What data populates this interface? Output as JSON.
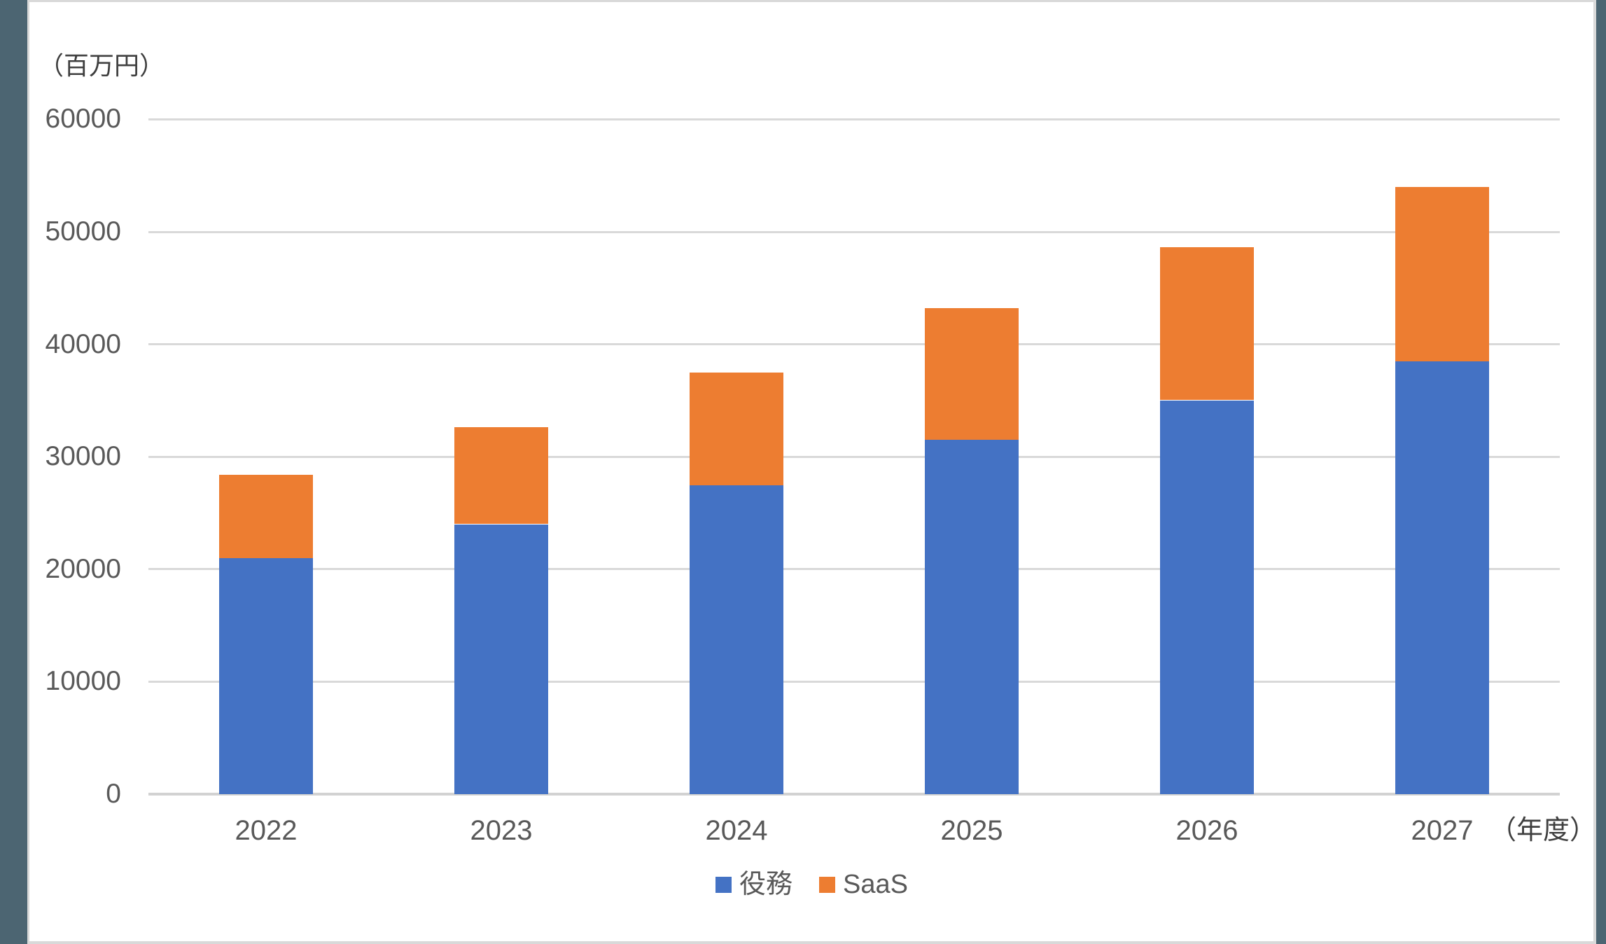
{
  "frame": {
    "side_strip_color": "#4C6572",
    "canvas_border_color": "#D9D9D9",
    "canvas_background": "#ffffff"
  },
  "chart_data": {
    "type": "bar",
    "stacked": true,
    "title": "",
    "unit_label": "（百万円）",
    "x_axis_suffix": "（年度）",
    "categories": [
      "2022",
      "2023",
      "2024",
      "2025",
      "2026",
      "2027"
    ],
    "series": [
      {
        "key": "services",
        "name": "役務",
        "color": "#4472C4",
        "values": [
          21000,
          24000,
          27500,
          31500,
          35000,
          38500
        ]
      },
      {
        "key": "saas",
        "name": "SaaS",
        "color": "#ED7D31",
        "values": [
          7400,
          8600,
          10000,
          11700,
          13600,
          15500
        ]
      }
    ],
    "totals": [
      28400,
      32600,
      37500,
      43200,
      48600,
      54000
    ],
    "y_axis": {
      "min": 0,
      "max": 60000,
      "step": 10000,
      "tick_labels": [
        "0",
        "10000",
        "20000",
        "30000",
        "40000",
        "50000",
        "60000"
      ]
    },
    "grid": true,
    "gridline_color": "#D9D9D9",
    "axis_text_color": "#595959",
    "legend_position": "bottom"
  }
}
